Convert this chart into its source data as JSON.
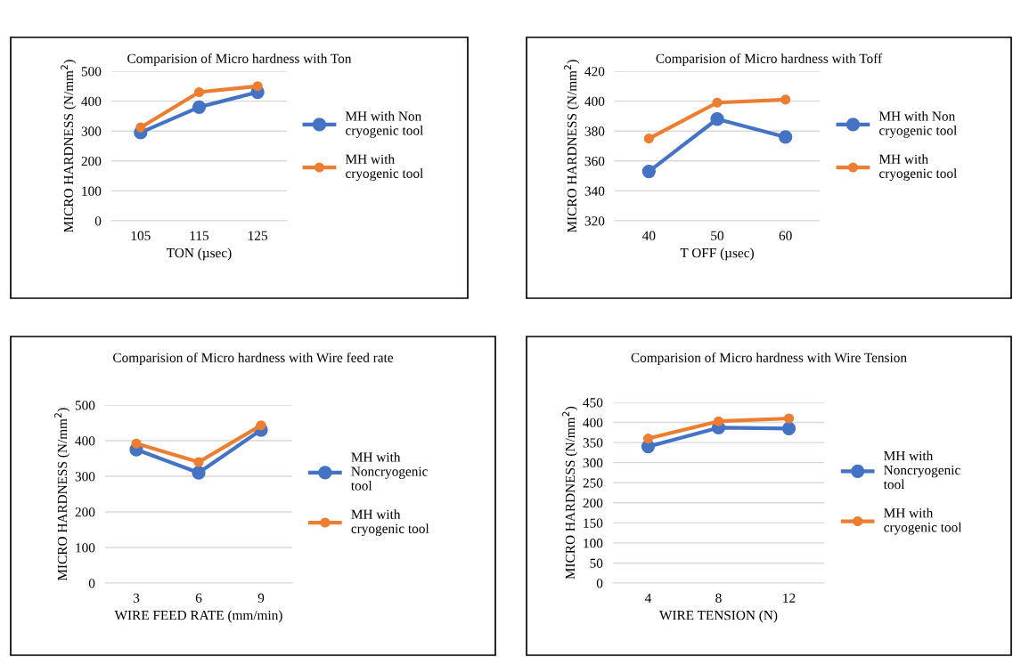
{
  "chart_data": [
    {
      "type": "line",
      "title": "Comparision of Micro hardness with Ton",
      "xlabel": "TON (µsec)",
      "ylabel": "MICRO HARDNESS (N/mm$^{2}$)",
      "categories": [
        "105",
        "115",
        "125"
      ],
      "ylim": [
        0,
        500
      ],
      "yticks": [
        0,
        100,
        200,
        300,
        400,
        500
      ],
      "grid": "y",
      "legend": "right",
      "marker": "circle",
      "line_style": "solid",
      "series": [
        {
          "name": "MH with Non\ncryogenic tool",
          "color": "#4472c4",
          "values": [
            295,
            380,
            430
          ]
        },
        {
          "name": "MH with\ncryogenic tool",
          "color": "#ed7d31",
          "values": [
            312,
            430,
            450
          ]
        }
      ]
    },
    {
      "type": "line",
      "title": "Comparision of Micro hardness with Toff",
      "xlabel": "T OFF (µsec)",
      "ylabel": "MICRO HARDNESS (N/mm$^{2}$)",
      "categories": [
        "40",
        "50",
        "60"
      ],
      "ylim": [
        320,
        420
      ],
      "yticks": [
        320,
        340,
        360,
        380,
        400,
        420
      ],
      "grid": "y",
      "legend": "right",
      "marker": "circle",
      "line_style": "solid",
      "series": [
        {
          "name": "MH with Non\ncryogenic tool",
          "color": "#4472c4",
          "values": [
            353,
            388,
            376
          ]
        },
        {
          "name": "MH with\ncryogenic tool",
          "color": "#ed7d31",
          "values": [
            375,
            399,
            401
          ]
        }
      ]
    },
    {
      "type": "line",
      "title": "Comparision of Micro hardness with Wire feed rate",
      "xlabel": "WIRE FEED RATE (mm/min)",
      "ylabel": "MICRO HARDNESS (N/mm$^{2}$)",
      "categories": [
        "3",
        "6",
        "9"
      ],
      "ylim": [
        0,
        500
      ],
      "yticks": [
        0,
        100,
        200,
        300,
        400,
        500
      ],
      "grid": "y",
      "legend": "right",
      "marker": "circle",
      "line_style": "solid",
      "series": [
        {
          "name": "MH with\nNoncryogenic\ntool",
          "color": "#4472c4",
          "values": [
            375,
            310,
            430
          ]
        },
        {
          "name": "MH with\ncryogenic tool",
          "color": "#ed7d31",
          "values": [
            392,
            340,
            443
          ]
        }
      ]
    },
    {
      "type": "line",
      "title": "Comparision of Micro hardness with Wire Tension",
      "xlabel": "WIRE TENSION (N)",
      "ylabel": "MICRO HARDNESS (N/mm$^{2}$)",
      "categories": [
        "4",
        "8",
        "12"
      ],
      "ylim": [
        0,
        450
      ],
      "yticks": [
        0,
        50,
        100,
        150,
        200,
        250,
        300,
        350,
        400,
        450
      ],
      "grid": "y",
      "legend": "right",
      "marker": "circle",
      "line_style": "solid",
      "series": [
        {
          "name": "MH with\nNoncryogenic\ntool",
          "color": "#4472c4",
          "values": [
            340,
            387,
            385
          ]
        },
        {
          "name": "MH with\ncryogenic tool",
          "color": "#ed7d31",
          "values": [
            360,
            403,
            410
          ]
        }
      ]
    }
  ]
}
